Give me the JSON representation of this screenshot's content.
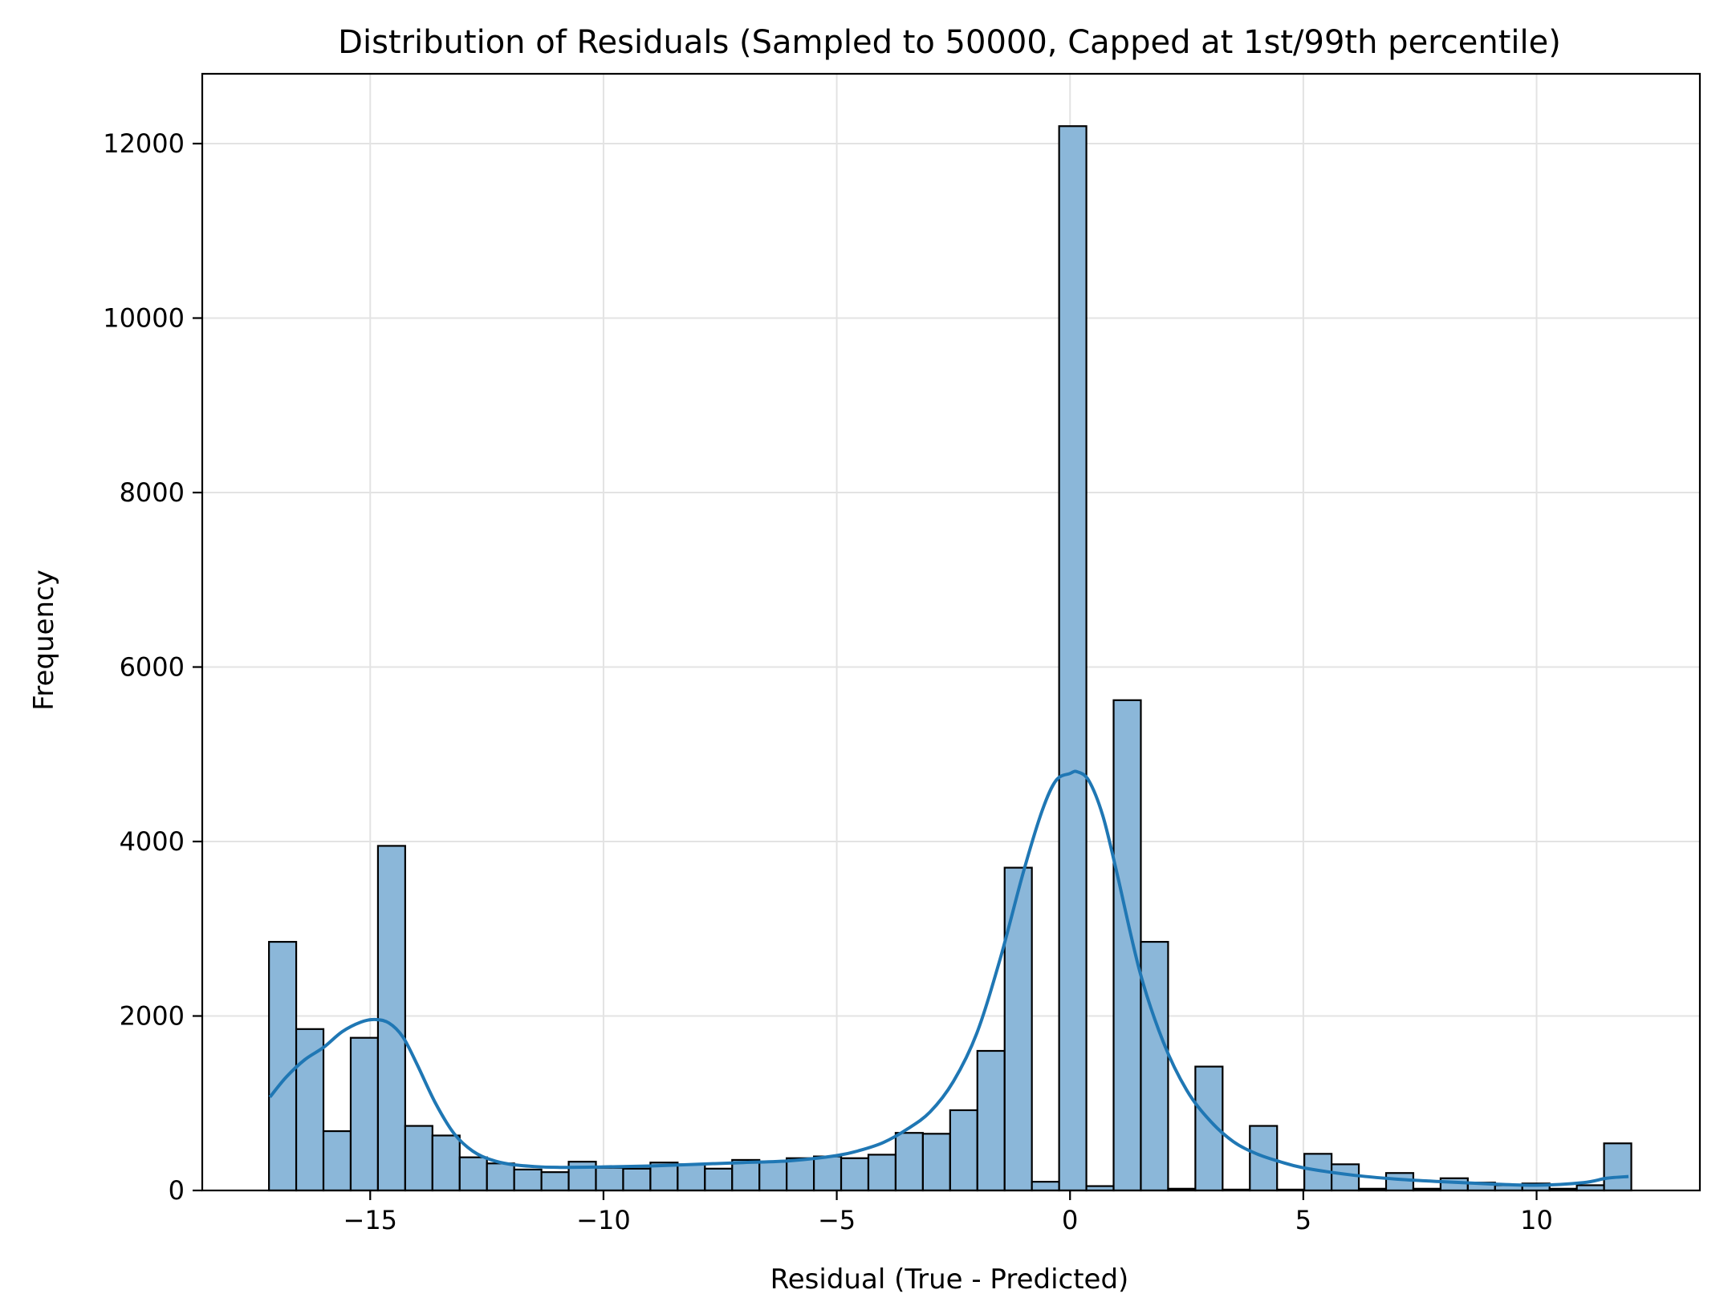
{
  "chart_data": {
    "type": "bar",
    "title": "Distribution of Residuals (Sampled to 50000, Capped at 1st/99th percentile)",
    "xlabel": "Residual (True - Predicted)",
    "ylabel": "Frequency",
    "xlim": [
      -18.6,
      13.5
    ],
    "ylim": [
      0,
      12800
    ],
    "grid": true,
    "legend": "none",
    "colors": {
      "bar_fill": "#8bb7d9",
      "bar_edge": "#000000",
      "kde": "#1f77b4"
    },
    "x_ticks": [
      {
        "value": -15,
        "label": "−15"
      },
      {
        "value": -10,
        "label": "−10"
      },
      {
        "value": -5,
        "label": "−5"
      },
      {
        "value": 0,
        "label": "0"
      },
      {
        "value": 5,
        "label": "5"
      },
      {
        "value": 10,
        "label": "10"
      }
    ],
    "y_ticks": [
      {
        "value": 0,
        "label": "0"
      },
      {
        "value": 2000,
        "label": "2000"
      },
      {
        "value": 4000,
        "label": "4000"
      },
      {
        "value": 6000,
        "label": "6000"
      },
      {
        "value": 8000,
        "label": "8000"
      },
      {
        "value": 10000,
        "label": "10000"
      },
      {
        "value": 12000,
        "label": "12000"
      }
    ],
    "bins": {
      "start": -17.17,
      "width": 0.584,
      "counts": [
        2850,
        1850,
        680,
        1750,
        3950,
        740,
        630,
        380,
        310,
        240,
        210,
        330,
        260,
        250,
        320,
        300,
        250,
        350,
        330,
        370,
        390,
        370,
        410,
        660,
        650,
        920,
        1600,
        3700,
        100,
        12200,
        50,
        5620,
        2850,
        20,
        1420,
        10,
        740,
        10,
        420,
        300,
        20,
        200,
        20,
        140,
        90,
        60,
        80,
        20,
        60,
        540
      ]
    },
    "kde": {
      "x": [
        -17.15,
        -16.8,
        -16.4,
        -16.0,
        -15.6,
        -15.2,
        -14.9,
        -14.6,
        -14.3,
        -14.0,
        -13.6,
        -13.2,
        -12.8,
        -12.4,
        -12.0,
        -11.5,
        -11.0,
        -10.0,
        -9.0,
        -8.0,
        -7.0,
        -6.0,
        -5.0,
        -4.5,
        -4.0,
        -3.5,
        -3.0,
        -2.5,
        -2.0,
        -1.5,
        -1.0,
        -0.6,
        -0.3,
        0.0,
        0.15,
        0.4,
        0.7,
        1.0,
        1.5,
        2.0,
        2.5,
        3.0,
        3.5,
        4.0,
        4.5,
        5.0,
        6.0,
        7.0,
        8.0,
        9.0,
        10.0,
        11.0,
        11.5,
        11.97
      ],
      "y": [
        1070,
        1300,
        1500,
        1640,
        1820,
        1930,
        1960,
        1920,
        1760,
        1450,
        1000,
        650,
        450,
        350,
        300,
        275,
        265,
        270,
        280,
        300,
        320,
        340,
        400,
        460,
        550,
        700,
        900,
        1250,
        1800,
        2650,
        3650,
        4350,
        4700,
        4780,
        4800,
        4700,
        4300,
        3650,
        2500,
        1700,
        1150,
        800,
        560,
        420,
        330,
        260,
        180,
        130,
        100,
        75,
        60,
        90,
        140,
        160
      ]
    }
  }
}
